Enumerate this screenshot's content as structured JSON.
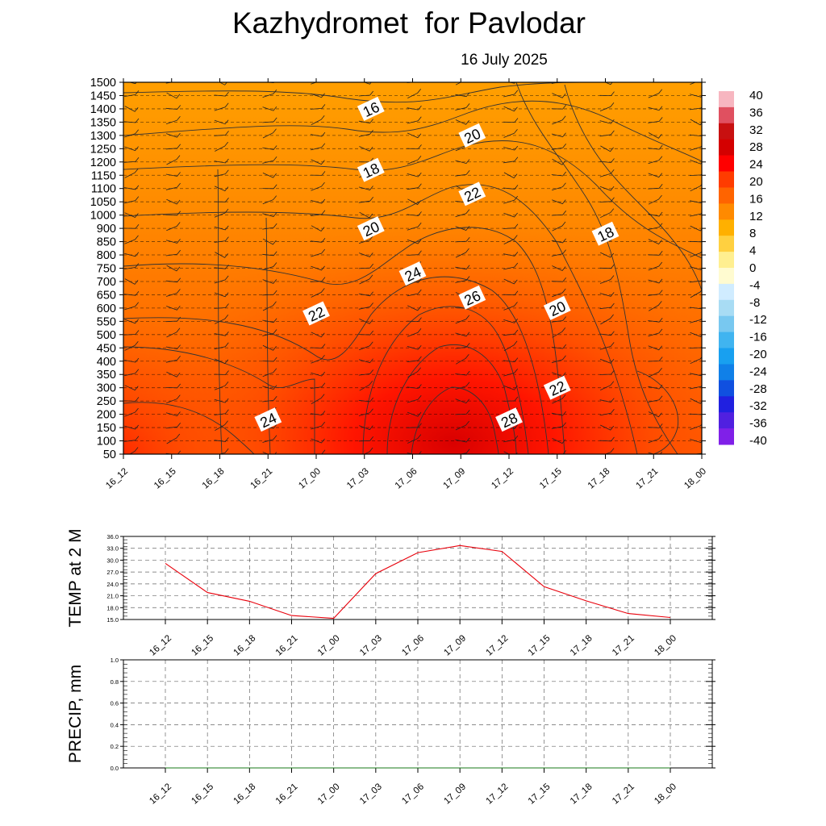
{
  "title": "Kazhydromet  for Pavlodar",
  "subtitle": "16 July 2025",
  "chart_data": [
    {
      "type": "heatmap",
      "description_of_fill": "time-height cross-section of temperature with contour lines and wind barbs",
      "x_ticks": [
        "16_12",
        "16_15",
        "16_18",
        "16_21",
        "17_00",
        "17_03",
        "17_06",
        "17_09",
        "17_12",
        "17_15",
        "17_18",
        "17_21",
        "18_00"
      ],
      "y_ticks": [
        50,
        100,
        150,
        200,
        250,
        300,
        350,
        400,
        450,
        500,
        550,
        600,
        650,
        700,
        750,
        800,
        850,
        900,
        1000,
        1050,
        1100,
        1150,
        1200,
        1250,
        1300,
        1350,
        1400,
        1450,
        1500
      ],
      "colorbar": {
        "labels": [
          40,
          36,
          32,
          28,
          24,
          20,
          16,
          12,
          8,
          4,
          0,
          -4,
          -8,
          -12,
          -16,
          -20,
          -24,
          -28,
          -32,
          -36,
          -40
        ]
      },
      "contour_labels": [
        {
          "text": "16",
          "time": "17_03",
          "level": 1400
        },
        {
          "text": "20",
          "time": "17_09",
          "level": 1300
        },
        {
          "text": "18",
          "time": "17_03",
          "level": 1170
        },
        {
          "text": "22",
          "time": "17_09",
          "level": 1080
        },
        {
          "text": "20",
          "time": "17_03",
          "level": 900
        },
        {
          "text": "18",
          "time": "17_18",
          "level": 880
        },
        {
          "text": "24",
          "time": "17_06",
          "level": 730
        },
        {
          "text": "26",
          "time": "17_09",
          "level": 640
        },
        {
          "text": "22",
          "time": "17_00",
          "level": 580
        },
        {
          "text": "20",
          "time": "17_15",
          "level": 600
        },
        {
          "text": "22",
          "time": "17_15",
          "level": 300
        },
        {
          "text": "24",
          "time": "16_21",
          "level": 180
        },
        {
          "text": "28",
          "time": "17_12",
          "level": 180
        }
      ]
    },
    {
      "type": "line",
      "ylabel": "TEMP at 2 M",
      "ylim": [
        15,
        36
      ],
      "y_ticks": [
        "36.0",
        "33.0",
        "30.0",
        "27.0",
        "24.0",
        "21.0",
        "18.0",
        "15.0"
      ],
      "categories": [
        "16_12",
        "16_15",
        "16_18",
        "16_21",
        "17_00",
        "17_03",
        "17_06",
        "17_09",
        "17_12",
        "17_15",
        "17_18",
        "17_21",
        "18_00"
      ],
      "series": [
        {
          "color": "#e8000b",
          "values": [
            29.2,
            21.8,
            19.6,
            16.0,
            15.3,
            26.6,
            31.9,
            33.7,
            32.2,
            23.3,
            19.7,
            16.5,
            15.5
          ]
        }
      ]
    },
    {
      "type": "line",
      "ylabel": "PRECIP, mm",
      "ylim": [
        0,
        1
      ],
      "y_ticks": [
        "1.0",
        "0.8",
        "0.6",
        "0.4",
        "0.2",
        "0.0"
      ],
      "categories": [
        "16_12",
        "16_15",
        "16_18",
        "16_21",
        "17_00",
        "17_03",
        "17_06",
        "17_09",
        "17_12",
        "17_15",
        "17_18",
        "17_21",
        "18_00"
      ],
      "series": [
        {
          "color": "#1a7a1a",
          "values": [
            0,
            0,
            0,
            0,
            0,
            0,
            0,
            0,
            0,
            0,
            0,
            0,
            0
          ]
        }
      ]
    }
  ]
}
